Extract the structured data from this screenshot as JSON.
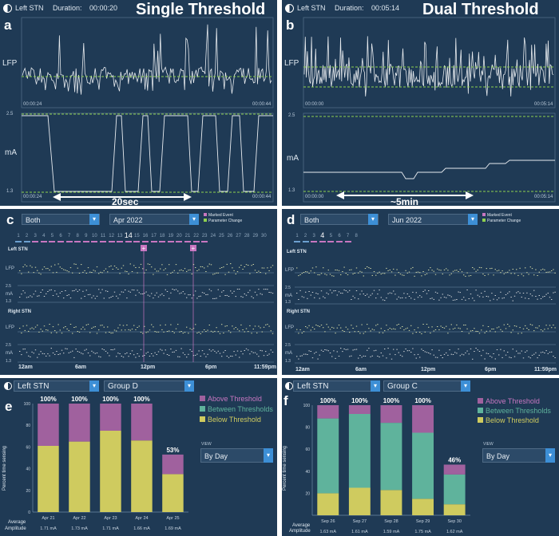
{
  "panels": {
    "a": {
      "label": "a",
      "title": "Single Threshold",
      "channel": "Left STN",
      "duration_label": "Duration:",
      "duration": "00:00:20",
      "lfp_label": "LFP",
      "ma_label": "mA",
      "start_time": "00:00:24",
      "end_time": "00:00:44",
      "ma_max": "2.5",
      "ma_min": "1.3",
      "span_label": "20sec"
    },
    "b": {
      "label": "b",
      "title": "Dual Threshold",
      "channel": "Left STN",
      "duration_label": "Duration:",
      "duration": "00:05:14",
      "lfp_label": "LFP",
      "ma_label": "mA",
      "start_time": "00:00:00",
      "end_time": "00:05:14",
      "ma_max": "2.5",
      "ma_min": "1.3",
      "span_label": "~5min"
    },
    "c": {
      "label": "c",
      "dropdown1": "Both",
      "dropdown2": "Apr 2022",
      "legend_marked": "Marked Event",
      "legend_param": "Parameter Change",
      "days": [
        "1",
        "2",
        "3",
        "4",
        "5",
        "6",
        "7",
        "8",
        "9",
        "10",
        "11",
        "12",
        "13",
        "14",
        "15",
        "16",
        "17",
        "18",
        "19",
        "20",
        "21",
        "22",
        "23",
        "24",
        "25",
        "26",
        "27",
        "28",
        "29",
        "30"
      ],
      "selected_day": "14",
      "left_stn": "Left STN",
      "right_stn": "Right STN",
      "lfp": "LFP",
      "ma": "mA",
      "y25": "2.5",
      "y13": "1.3",
      "times": [
        "12am",
        "6am",
        "12pm",
        "6pm",
        "11:59pm"
      ]
    },
    "d": {
      "label": "d",
      "dropdown1": "Both",
      "dropdown2": "Jun 2022",
      "legend_marked": "Marked Event",
      "legend_param": "Parameter Change",
      "days": [
        "1",
        "2",
        "3",
        "4",
        "5",
        "6",
        "7",
        "8"
      ],
      "selected_day": "4",
      "left_stn": "Left STN",
      "right_stn": "Right STN",
      "lfp": "LFP",
      "ma": "mA",
      "y25": "2.5",
      "y13": "1.3",
      "times": [
        "12am",
        "6am",
        "12pm",
        "6pm",
        "11:59pm"
      ]
    },
    "e": {
      "label": "e",
      "dropdown1": "Left STN",
      "dropdown2": "Group D",
      "legend": [
        "Above Threshold",
        "Between Thresholds",
        "Below Threshold"
      ],
      "ylabel": "Percent time sensing",
      "view_label": "VIEW",
      "view_value": "By Day",
      "avg_label1": "Average",
      "avg_label2": "Amplitude"
    },
    "f": {
      "label": "f",
      "dropdown1": "Left STN",
      "dropdown2": "Group C",
      "legend": [
        "Above Threshold",
        "Between Thresholds",
        "Below Threshold"
      ],
      "ylabel": "Percent time sensing",
      "view_label": "VIEW",
      "view_value": "By Day",
      "avg_label1": "Average",
      "avg_label2": "Amplitude"
    }
  },
  "colors": {
    "bg": "#1f3a55",
    "above": "#a0619e",
    "between": "#5fb39c",
    "below": "#cfcb5f",
    "dashed": "#8fd14f",
    "trace": "#e6eaee"
  },
  "chart_data": [
    {
      "type": "bar",
      "id": "e",
      "title": "",
      "categories": [
        "Apr 21",
        "Apr 22",
        "Apr 23",
        "Apr 24",
        "Apr 25"
      ],
      "series": [
        {
          "name": "Below Threshold",
          "values": [
            61,
            65,
            75,
            66,
            35
          ]
        },
        {
          "name": "Above Threshold",
          "values": [
            39,
            35,
            25,
            34,
            18
          ]
        }
      ],
      "totals": [
        "100%",
        "100%",
        "100%",
        "100%",
        "53%"
      ],
      "amplitudes": [
        "1.71 mA",
        "1.73 mA",
        "1.71 mA",
        "1.66 mA",
        "1.69 mA"
      ],
      "yticks": [
        "0",
        "20",
        "40",
        "60",
        "80",
        "100"
      ],
      "ylim": [
        0,
        100
      ],
      "ylabel": "Percent time sensing"
    },
    {
      "type": "bar",
      "id": "f",
      "title": "",
      "categories": [
        "Sep 26",
        "Sep 27",
        "Sep 28",
        "Sep 29",
        "Sep 30"
      ],
      "series": [
        {
          "name": "Below Threshold",
          "values": [
            20,
            25,
            23,
            15,
            10
          ]
        },
        {
          "name": "Between Thresholds",
          "values": [
            68,
            67,
            61,
            60,
            27
          ]
        },
        {
          "name": "Above Threshold",
          "values": [
            12,
            8,
            16,
            25,
            9
          ]
        }
      ],
      "totals": [
        "100%",
        "100%",
        "100%",
        "100%",
        "46%"
      ],
      "amplitudes": [
        "1.63 mA",
        "1.61 mA",
        "1.59 mA",
        "1.75 mA",
        "1.62 mA"
      ],
      "yticks": [
        "20",
        "40",
        "60",
        "80",
        "100"
      ],
      "ylim": [
        0,
        100
      ],
      "ylabel": "Percent time sensing"
    }
  ]
}
